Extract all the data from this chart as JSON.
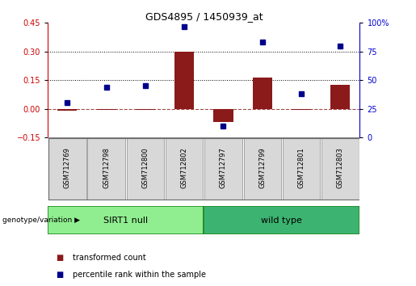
{
  "title": "GDS4895 / 1450939_at",
  "samples": [
    "GSM712769",
    "GSM712798",
    "GSM712800",
    "GSM712802",
    "GSM712797",
    "GSM712799",
    "GSM712801",
    "GSM712803"
  ],
  "transformed_count": [
    -0.012,
    -0.005,
    -0.005,
    0.3,
    -0.07,
    0.162,
    -0.008,
    0.125
  ],
  "percentile_rank": [
    30,
    44,
    45,
    97,
    10,
    83,
    38,
    80
  ],
  "groups": [
    {
      "label": "SIRT1 null",
      "start": 0,
      "end": 4,
      "color": "#90EE90"
    },
    {
      "label": "wild type",
      "start": 4,
      "end": 8,
      "color": "#3CB371"
    }
  ],
  "group_label": "genotype/variation",
  "bar_color": "#8B1A1A",
  "dot_color": "#00008B",
  "ylim_left": [
    -0.15,
    0.45
  ],
  "ylim_right": [
    0,
    100
  ],
  "yticks_left": [
    -0.15,
    0,
    0.15,
    0.3,
    0.45
  ],
  "yticks_right": [
    0,
    25,
    50,
    75,
    100
  ],
  "hlines": [
    0.15,
    0.3
  ],
  "legend_bar_label": "transformed count",
  "legend_dot_label": "percentile rank within the sample",
  "bg_plot": "#FFFFFF",
  "bg_outer": "#FFFFFF",
  "left_axis_color": "#CC0000",
  "right_axis_color": "#0000CC"
}
